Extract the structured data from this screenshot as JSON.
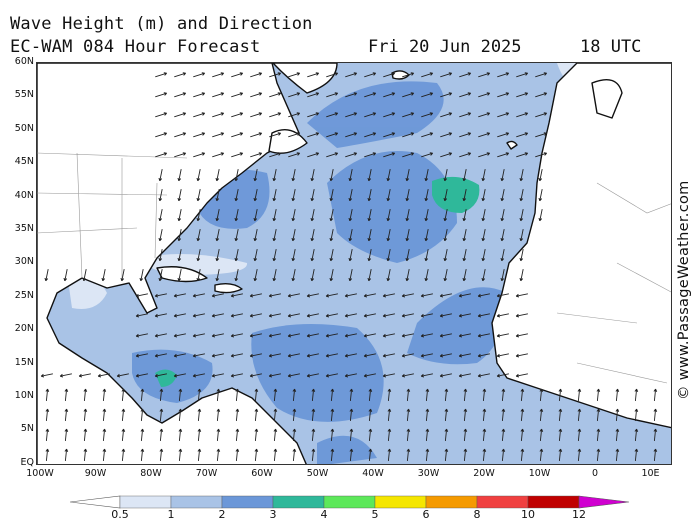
{
  "title": {
    "line1": "Wave Height (m) and Direction",
    "line2": "EC-WAM 084 Hour Forecast",
    "date": "Fri 20 Jun 2025",
    "time": "18 UTC"
  },
  "copyright": "© www.PassageWeather.com",
  "lat_labels": [
    "60N",
    "55N",
    "50N",
    "45N",
    "40N",
    "35N",
    "30N",
    "25N",
    "20N",
    "15N",
    "10N",
    "5N",
    "EQ"
  ],
  "lon_labels": [
    "100W",
    "90W",
    "80W",
    "70W",
    "60W",
    "50W",
    "40W",
    "30W",
    "20W",
    "10W",
    "0",
    "10E"
  ],
  "colorbar": {
    "labels": [
      "0.5",
      "1",
      "2",
      "3",
      "4",
      "5",
      "6",
      "8",
      "10",
      "12"
    ],
    "colors": [
      "#ffffff",
      "#dce6f5",
      "#a9c3e6",
      "#6b97d8",
      "#2fb89a",
      "#5de85a",
      "#f5e600",
      "#f59a00",
      "#f04040",
      "#c00000",
      "#d000d0"
    ]
  },
  "colors": {
    "land": "#ffffff",
    "sea_low": "#a9c3e6",
    "sea_mid": "#6b97d8",
    "sea_high": "#2fb89a",
    "arrow": "#222222"
  }
}
